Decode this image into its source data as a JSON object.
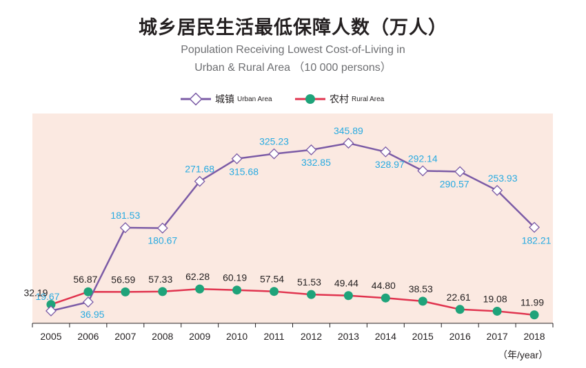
{
  "chart_data": {
    "type": "line",
    "title": "城乡居民生活最低保障人数（万人）",
    "subtitle_line1": "Population Receiving Lowest Cost-of-Living in",
    "subtitle_line2": "Urban & Rural Area （10 000 persons）",
    "xlabel": "（年/year）",
    "ylabel": "",
    "ylim": [
      0,
      400
    ],
    "grid": false,
    "legend_position": "top-center",
    "x": [
      "2005",
      "2006",
      "2007",
      "2008",
      "2009",
      "2010",
      "2011",
      "2012",
      "2013",
      "2014",
      "2015",
      "2016",
      "2017",
      "2018"
    ],
    "series": [
      {
        "name_cn": "城镇",
        "name_en": "Urban Area",
        "color": "#7b5ba6",
        "label_color": "#27aae1",
        "marker": "diamond",
        "values": [
          19.67,
          36.95,
          181.53,
          180.67,
          271.68,
          315.68,
          325.23,
          332.85,
          345.89,
          328.97,
          292.14,
          290.57,
          253.93,
          182.21
        ],
        "labels": [
          "19.67",
          "36.95",
          "181.53",
          "180.67",
          "271.68",
          "315.68",
          "325.23",
          "332.85",
          "345.89",
          "328.97",
          "292.14",
          "290.57",
          "253.93",
          "182.21"
        ]
      },
      {
        "name_cn": "农村",
        "name_en": "Rural Area",
        "color": "#e0334e",
        "label_color": "#231f20",
        "marker": "circle",
        "marker_color": "#1fa37a",
        "values": [
          32.19,
          56.87,
          56.59,
          57.33,
          62.28,
          60.19,
          57.54,
          51.53,
          49.44,
          44.8,
          38.53,
          22.61,
          19.08,
          11.99
        ],
        "labels": [
          "32.19",
          "56.87",
          "56.59",
          "57.33",
          "62.28",
          "60.19",
          "57.54",
          "51.53",
          "49.44",
          "44.80",
          "38.53",
          "22.61",
          "19.08",
          "11.99"
        ]
      }
    ],
    "plot_background": "#fbe9e1"
  }
}
